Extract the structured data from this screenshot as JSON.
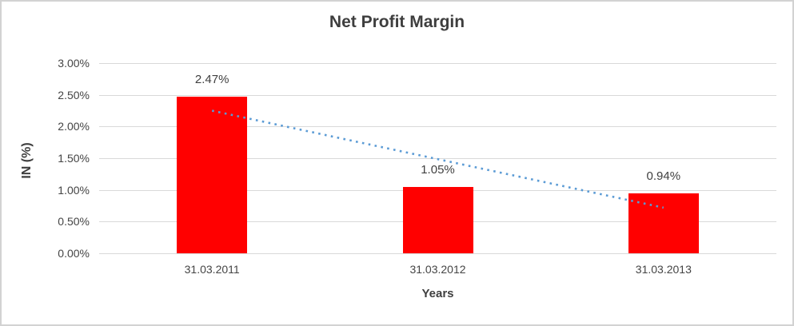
{
  "chart_data": {
    "type": "bar",
    "title": "Net Profit Margin",
    "xlabel": "Years",
    "ylabel": "IN (%)",
    "categories": [
      "31.03.2011",
      "31.03.2012",
      "31.03.2013"
    ],
    "values": [
      2.47,
      1.05,
      0.94
    ],
    "data_labels": [
      "2.47%",
      "1.05%",
      "0.94%"
    ],
    "ylim": [
      0,
      3.0
    ],
    "ytick_step": 0.5,
    "ytick_labels": [
      "0.00%",
      "0.50%",
      "1.00%",
      "1.50%",
      "2.00%",
      "2.50%",
      "3.00%"
    ],
    "grid": true,
    "legend": "none",
    "bar_color": "#ff0000",
    "gridline_color": "#d9d9d9",
    "trendline": {
      "type": "linear",
      "style": "dotted",
      "color": "#5b9bd5",
      "start_value": 2.25,
      "end_value": 0.72
    }
  }
}
